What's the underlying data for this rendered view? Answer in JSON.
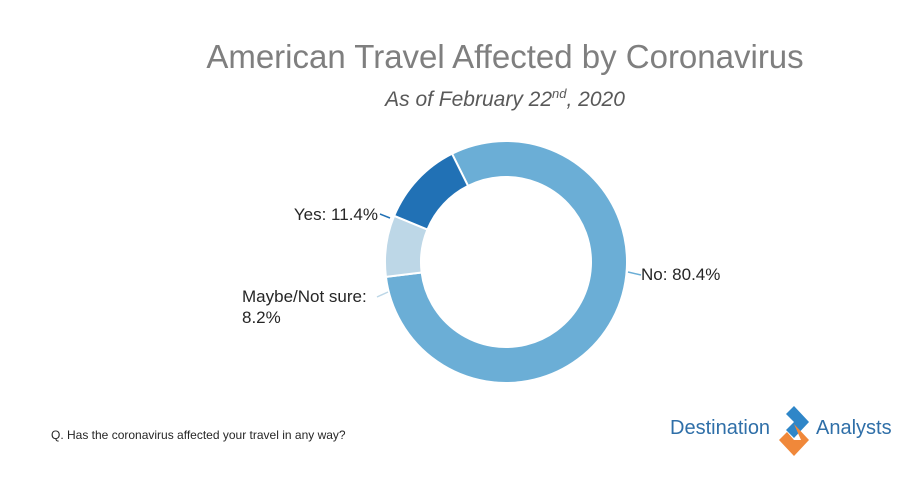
{
  "title": "American Travel Affected by Coronavirus",
  "subtitle_main": "As of February 22",
  "subtitle_sup": "nd",
  "subtitle_tail": ", 2020",
  "question": "Q. Has the coronavirus affected your travel in any way?",
  "logo": {
    "left": "Destination",
    "right": "Analysts"
  },
  "chart_data": {
    "type": "pie",
    "donut": true,
    "start_angle_deg": 333.5,
    "series": [
      {
        "label": "No: 80.4%",
        "value": 80.4,
        "color": "#6baed6"
      },
      {
        "label": "Maybe/Not sure:",
        "label2": "8.2%",
        "value": 8.2,
        "color": "#bdd7e7"
      },
      {
        "label": "Yes: 11.4%",
        "value": 11.4,
        "color": "#2171b5"
      }
    ]
  }
}
